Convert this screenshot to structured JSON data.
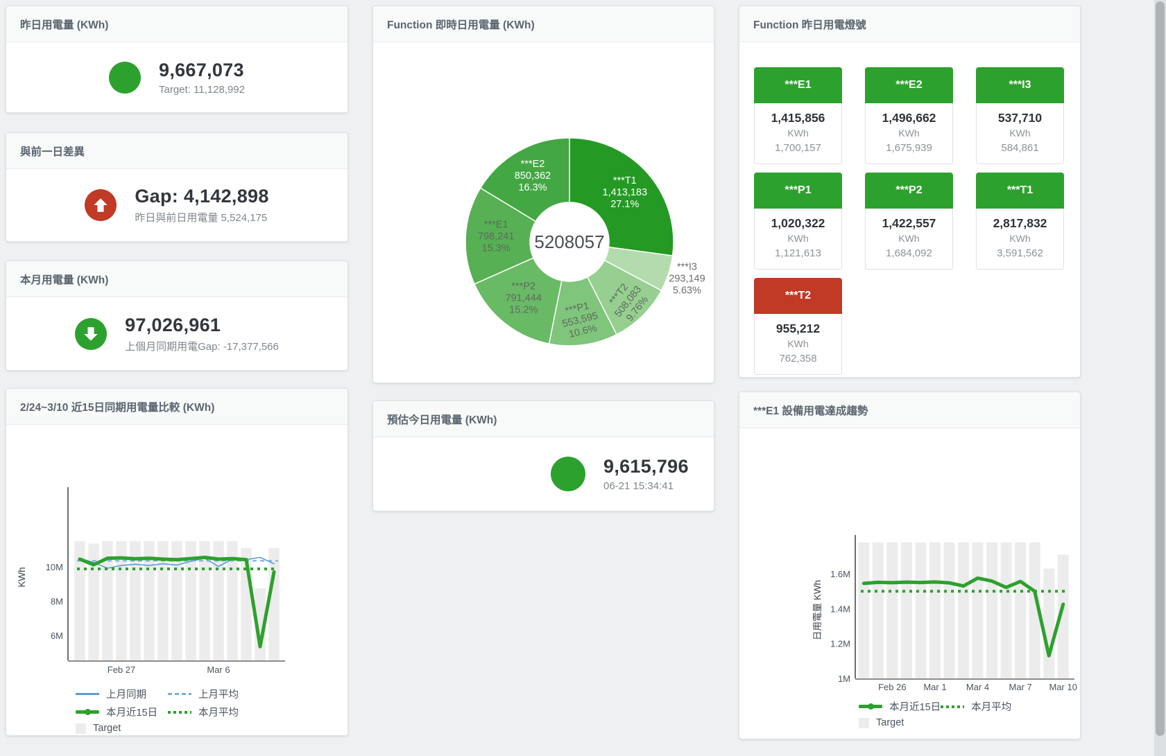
{
  "theme": {
    "green": "#2da12d",
    "red": "#c03a26",
    "bar_gray": "#ececec",
    "blue": "#5b9bd5"
  },
  "cards": {
    "yesterday": {
      "title": "昨日用電量 (KWh)",
      "value": "9,667,073",
      "caption": "Target: 11,128,992",
      "icon": "circle",
      "icon_color": "#2da12d"
    },
    "gap": {
      "title": "與前一日差異",
      "value": "Gap: 4,142,898",
      "caption": "昨日與前日用電量 5,524,175",
      "icon": "arrow-up",
      "icon_color": "#c03a26"
    },
    "month": {
      "title": "本月用電量 (KWh)",
      "value": "97,026,961",
      "caption": "上個月同期用電Gap: -17,377,566",
      "icon": "arrow-down",
      "icon_color": "#2da12d"
    },
    "estimate": {
      "title": "預估今日用電量 (KWh)",
      "value": "9,615,796",
      "caption": "06-21 15:34:41",
      "icon": "circle",
      "icon_color": "#2da12d"
    }
  },
  "lights": {
    "title": "Function 昨日用電燈號",
    "unit": "KWh",
    "tiles": [
      {
        "label": "***E1",
        "value": "1,415,856",
        "unit": "KWh",
        "target": "1,700,157",
        "status": "green"
      },
      {
        "label": "***E2",
        "value": "1,496,662",
        "unit": "KWh",
        "target": "1,675,939",
        "status": "green"
      },
      {
        "label": "***I3",
        "value": "537,710",
        "unit": "KWh",
        "target": "584,861",
        "status": "green"
      },
      {
        "label": "***P1",
        "value": "1,020,322",
        "unit": "KWh",
        "target": "1,121,613",
        "status": "green"
      },
      {
        "label": "***P2",
        "value": "1,422,557",
        "unit": "KWh",
        "target": "1,684,092",
        "status": "green"
      },
      {
        "label": "***T1",
        "value": "2,817,832",
        "unit": "KWh",
        "target": "3,591,562",
        "status": "green"
      },
      {
        "label": "***T2",
        "value": "955,212",
        "unit": "KWh",
        "target": "762,358",
        "status": "red"
      }
    ]
  },
  "chart_data": [
    {
      "id": "donut",
      "type": "pie",
      "title": "Function 即時日用電量 (KWh)",
      "center_total": "5208057",
      "slices": [
        {
          "name": "***T1",
          "value": 1413183,
          "display": "1,413,183",
          "pct": "27.1%",
          "color": "#249a24",
          "label_style": "white",
          "label_r": 106
        },
        {
          "name": "***I3",
          "value": 293149,
          "display": "293,149",
          "pct": "5.63%",
          "color": "#b4dbad",
          "label_style": "outside",
          "label_r": 178
        },
        {
          "name": "***T2",
          "value": 508083,
          "display": "508,083",
          "pct": "9.76%",
          "color": "#96cf90",
          "label_style": "gray",
          "label_r": 122,
          "label_rotate": -52
        },
        {
          "name": "***P1",
          "value": 553595,
          "display": "553,595",
          "pct": "10.6%",
          "color": "#7fc57b",
          "label_style": "gray",
          "label_r": 115,
          "label_rotate": -14
        },
        {
          "name": "***P2",
          "value": 791444,
          "display": "791,444",
          "pct": "15.2%",
          "color": "#69ba65",
          "label_style": "gray",
          "label_r": 106
        },
        {
          "name": "***E1",
          "value": 798241,
          "display": "798,241",
          "pct": "15.3%",
          "color": "#57b053",
          "label_style": "gray",
          "label_r": 106
        },
        {
          "name": "***E2",
          "value": 850362,
          "display": "850,362",
          "pct": "16.3%",
          "color": "#43a743",
          "label_style": "white",
          "label_r": 108
        }
      ]
    },
    {
      "id": "compare",
      "type": "line+bar",
      "title": "2/24~3/10 近15日同期用電量比較 (KWh)",
      "ylabel": "KWh",
      "yticks": [
        {
          "value": 6,
          "label": "6M"
        },
        {
          "value": 8,
          "label": "8M"
        },
        {
          "value": 10,
          "label": "10M"
        }
      ],
      "xticks": [
        {
          "index": 3,
          "label": "Feb 27"
        },
        {
          "index": 10,
          "label": "Mar 6"
        }
      ],
      "bars": {
        "name": "Target",
        "color": "#ececec",
        "values_m": [
          11.5,
          11.35,
          11.5,
          11.5,
          11.5,
          11.5,
          11.5,
          11.5,
          11.5,
          11.5,
          11.5,
          11.5,
          11.1,
          8.75,
          11.1
        ]
      },
      "series": [
        {
          "name": "上月同期",
          "style": "solid",
          "color": "#5b9bd5",
          "width": 1.6,
          "values_m": [
            10.5,
            10.25,
            9.92,
            10.08,
            10.15,
            10.08,
            10.18,
            10.1,
            10.32,
            10.5,
            10.02,
            10.45,
            10.42,
            10.55,
            10.18
          ]
        },
        {
          "name": "上月平均",
          "style": "dashed",
          "color": "#74aedd",
          "width": 2,
          "avg_m": 10.35
        },
        {
          "name": "本月近15日",
          "style": "solid",
          "color": "#2da12d",
          "width": 5,
          "values_m": [
            10.45,
            10.12,
            10.5,
            10.52,
            10.47,
            10.5,
            10.45,
            10.42,
            10.48,
            10.55,
            10.45,
            10.48,
            10.42,
            5.35,
            9.7
          ]
        },
        {
          "name": "本月平均",
          "style": "dotted",
          "color": "#2da12d",
          "width": 4,
          "avg_m": 9.88
        }
      ],
      "legend_rows": [
        [
          {
            "label": "上月同期",
            "swatch": "line",
            "color": "#5b9bd5"
          },
          {
            "label": "上月平均",
            "swatch": "dashed",
            "color": "#74aedd"
          }
        ],
        [
          {
            "label": "本月近15日",
            "swatch": "thick",
            "color": "#2da12d"
          },
          {
            "label": "本月平均",
            "swatch": "dotted",
            "color": "#2da12d"
          }
        ],
        [
          {
            "label": "Target",
            "swatch": "square",
            "color": "#ececec"
          }
        ]
      ]
    },
    {
      "id": "trend",
      "type": "line+bar",
      "title": "***E1 設備用電達成趨勢",
      "ylabel": "日用電量 KWh",
      "yticks": [
        {
          "value": 1,
          "label": "1M"
        },
        {
          "value": 1.2,
          "label": "1.2M"
        },
        {
          "value": 1.4,
          "label": "1.4M"
        },
        {
          "value": 1.6,
          "label": "1.6M"
        }
      ],
      "xticks": [
        {
          "index": 2,
          "label": "Feb 26"
        },
        {
          "index": 5,
          "label": "Mar 1"
        },
        {
          "index": 8,
          "label": "Mar 4"
        },
        {
          "index": 11,
          "label": "Mar 7"
        },
        {
          "index": 14,
          "label": "Mar 10"
        }
      ],
      "bars": {
        "name": "Target",
        "color": "#ececec",
        "values_m": [
          1.78,
          1.78,
          1.78,
          1.78,
          1.78,
          1.78,
          1.78,
          1.78,
          1.78,
          1.78,
          1.78,
          1.78,
          1.78,
          1.63,
          1.71
        ]
      },
      "series": [
        {
          "name": "本月近15日",
          "style": "solid",
          "color": "#2da12d",
          "width": 5,
          "values_m": [
            1.545,
            1.551,
            1.549,
            1.552,
            1.55,
            1.553,
            1.548,
            1.53,
            1.575,
            1.558,
            1.522,
            1.556,
            1.5,
            1.13,
            1.425
          ]
        },
        {
          "name": "本月平均",
          "style": "dotted",
          "color": "#2da12d",
          "width": 4,
          "avg_m": 1.5
        }
      ],
      "legend_rows": [
        [
          {
            "label": "本月近15日",
            "swatch": "thick",
            "color": "#2da12d"
          },
          {
            "label": "本月平均",
            "swatch": "dotted",
            "color": "#2da12d"
          }
        ],
        [
          {
            "label": "Target",
            "swatch": "square",
            "color": "#ececec"
          }
        ]
      ]
    }
  ]
}
